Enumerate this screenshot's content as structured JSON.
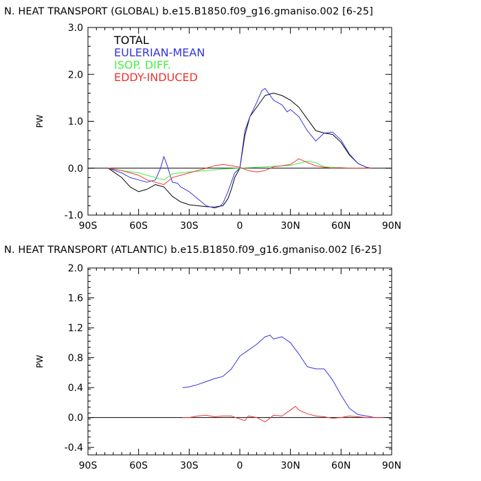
{
  "chart_data": [
    {
      "type": "line",
      "title": "N. HEAT TRANSPORT (GLOBAL) b.e15.B1850.f09_g16.gmaniso.002 [6-25]",
      "xlabel": "",
      "ylabel": "PW",
      "xlim": [
        -90,
        90
      ],
      "ylim": [
        -1.0,
        3.0
      ],
      "xticklabels": [
        "90S",
        "60S",
        "30S",
        "0",
        "30N",
        "60N",
        "90N"
      ],
      "xtickvalues": [
        -90,
        -60,
        -30,
        0,
        30,
        60,
        90
      ],
      "yticklabels": [
        "-1.0",
        "0.0",
        "1.0",
        "2.0",
        "3.0"
      ],
      "ytickvalues": [
        -1.0,
        0.0,
        1.0,
        2.0,
        3.0
      ],
      "legend_position": "top-left",
      "series": [
        {
          "name": "TOTAL",
          "color": "#000000",
          "x": [
            -78,
            -70,
            -65,
            -60,
            -55,
            -50,
            -45,
            -40,
            -35,
            -30,
            -25,
            -20,
            -15,
            -10,
            -7,
            -5,
            -3,
            0,
            3,
            6,
            10,
            15,
            20,
            25,
            30,
            35,
            40,
            45,
            50,
            55,
            60,
            65,
            70,
            75,
            78
          ],
          "values": [
            0.0,
            -0.2,
            -0.4,
            -0.5,
            -0.45,
            -0.35,
            -0.4,
            -0.6,
            -0.72,
            -0.78,
            -0.8,
            -0.82,
            -0.83,
            -0.8,
            -0.65,
            -0.45,
            -0.2,
            0.0,
            0.7,
            1.1,
            1.3,
            1.55,
            1.6,
            1.55,
            1.45,
            1.3,
            1.05,
            0.8,
            0.75,
            0.72,
            0.55,
            0.28,
            0.1,
            0.02,
            0.0
          ]
        },
        {
          "name": "EULERIAN-MEAN",
          "color": "#3333dd",
          "x": [
            -78,
            -70,
            -65,
            -60,
            -55,
            -50,
            -47,
            -45,
            -43,
            -40,
            -37,
            -35,
            -30,
            -25,
            -20,
            -15,
            -12,
            -10,
            -7,
            -5,
            -3,
            0,
            3,
            6,
            10,
            13,
            15,
            18,
            20,
            25,
            28,
            30,
            35,
            40,
            45,
            50,
            55,
            60,
            65,
            70,
            75,
            78
          ],
          "values": [
            0.0,
            -0.1,
            -0.2,
            -0.25,
            -0.3,
            -0.25,
            0.0,
            0.25,
            0.05,
            -0.3,
            -0.32,
            -0.4,
            -0.5,
            -0.65,
            -0.8,
            -0.85,
            -0.82,
            -0.75,
            -0.5,
            -0.3,
            -0.1,
            0.0,
            0.8,
            1.1,
            1.4,
            1.65,
            1.7,
            1.55,
            1.45,
            1.35,
            1.2,
            1.25,
            1.1,
            0.8,
            0.58,
            0.75,
            0.77,
            0.6,
            0.3,
            0.1,
            0.02,
            0.0
          ]
        },
        {
          "name": "ISOP. DIFF.",
          "color": "#44ee44",
          "x": [
            -78,
            -70,
            -60,
            -50,
            -45,
            -40,
            -30,
            -20,
            -10,
            0,
            10,
            20,
            30,
            35,
            40,
            45,
            50,
            55,
            60,
            70,
            78
          ],
          "values": [
            0.0,
            -0.05,
            -0.1,
            -0.2,
            -0.25,
            -0.12,
            -0.08,
            -0.05,
            -0.02,
            0.0,
            0.02,
            0.04,
            0.06,
            0.1,
            0.15,
            0.12,
            0.03,
            0.02,
            0.01,
            0.0,
            0.0
          ]
        },
        {
          "name": "EDDY-INDUCED",
          "color": "#ee3333",
          "x": [
            -78,
            -70,
            -60,
            -55,
            -50,
            -45,
            -40,
            -35,
            -30,
            -25,
            -20,
            -15,
            -10,
            -5,
            0,
            5,
            10,
            15,
            20,
            25,
            30,
            33,
            35,
            40,
            45,
            50,
            55,
            60,
            65,
            70,
            78
          ],
          "values": [
            0.0,
            -0.05,
            -0.15,
            -0.25,
            -0.3,
            -0.35,
            -0.2,
            -0.15,
            -0.1,
            -0.05,
            0.0,
            0.05,
            0.08,
            0.05,
            0.02,
            -0.05,
            -0.08,
            -0.05,
            0.03,
            0.05,
            0.08,
            0.15,
            0.2,
            0.12,
            0.05,
            0.02,
            0.0,
            0.01,
            0.0,
            0.0,
            0.0
          ]
        }
      ]
    },
    {
      "type": "line",
      "title": "N. HEAT TRANSPORT (ATLANTIC) b.e15.B1850.f09_g16.gmaniso.002 [6-25]",
      "xlabel": "",
      "ylabel": "PW",
      "xlim": [
        -90,
        90
      ],
      "ylim": [
        -0.5,
        2.0
      ],
      "xticklabels": [
        "90S",
        "60S",
        "30S",
        "0",
        "30N",
        "60N",
        "90N"
      ],
      "xtickvalues": [
        -90,
        -60,
        -30,
        0,
        30,
        60,
        90
      ],
      "yticklabels": [
        "-0.4",
        "0.0",
        "0.4",
        "0.8",
        "1.2",
        "1.6",
        "2.0"
      ],
      "ytickvalues": [
        -0.4,
        0.0,
        0.4,
        0.8,
        1.2,
        1.6,
        2.0
      ],
      "series": [
        {
          "name": "",
          "color": "#3333dd",
          "x": [
            -34,
            -30,
            -25,
            -20,
            -15,
            -10,
            -5,
            0,
            5,
            10,
            15,
            18,
            20,
            25,
            30,
            35,
            40,
            45,
            50,
            55,
            60,
            65,
            70,
            75,
            80,
            85
          ],
          "values": [
            0.4,
            0.41,
            0.44,
            0.48,
            0.52,
            0.55,
            0.65,
            0.82,
            0.9,
            0.98,
            1.08,
            1.1,
            1.05,
            1.08,
            1.0,
            0.85,
            0.68,
            0.65,
            0.65,
            0.5,
            0.3,
            0.12,
            0.04,
            0.02,
            0.0,
            0.0
          ]
        },
        {
          "name": "",
          "color": "#ee3333",
          "x": [
            -34,
            -30,
            -25,
            -20,
            -15,
            -10,
            -5,
            0,
            3,
            5,
            10,
            15,
            20,
            25,
            30,
            33,
            35,
            40,
            45,
            50,
            55,
            60,
            65,
            70,
            75,
            80,
            85
          ],
          "values": [
            0.0,
            0.0,
            0.02,
            0.03,
            0.01,
            0.02,
            0.02,
            -0.02,
            -0.04,
            0.02,
            0.0,
            -0.06,
            0.03,
            0.02,
            0.1,
            0.15,
            0.1,
            0.05,
            0.02,
            0.01,
            -0.01,
            0.0,
            0.02,
            0.01,
            0.0,
            0.0,
            0.0
          ]
        }
      ]
    }
  ]
}
